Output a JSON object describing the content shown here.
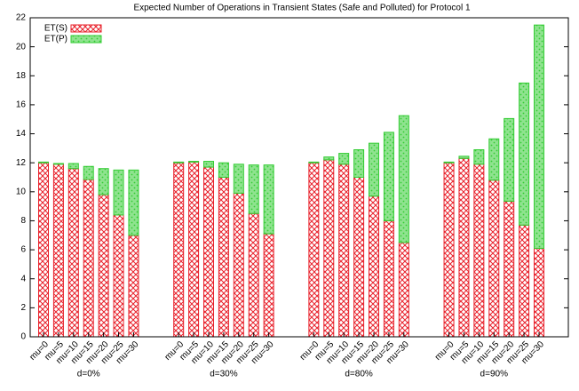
{
  "chart_data": {
    "type": "stacked-bar",
    "title": "Expected Number of Operations in Transient States (Safe and Polluted) for Protocol 1",
    "groups": [
      "d=0%",
      "d=30%",
      "d=80%",
      "d=90%"
    ],
    "categories": [
      "mu=0",
      "mu=5",
      "mu=10",
      "mu=15",
      "mu=20",
      "mu=25",
      "mu=30",
      "mu=0",
      "mu=5",
      "mu=10",
      "mu=15",
      "mu=20",
      "mu=25",
      "mu=30",
      "mu=0",
      "mu=5",
      "mu=10",
      "mu=15",
      "mu=20",
      "mu=25",
      "mu=30",
      "mu=0",
      "mu=5",
      "mu=10",
      "mu=15",
      "mu=20",
      "mu=25",
      "mu=30"
    ],
    "series": [
      {
        "name": "ET(S)",
        "color": "#e8202a",
        "values": [
          12.0,
          11.9,
          11.6,
          10.85,
          9.8,
          8.4,
          7.0,
          12.0,
          12.05,
          11.7,
          11.0,
          9.9,
          8.5,
          7.1,
          12.0,
          12.2,
          11.9,
          11.0,
          9.7,
          8.0,
          6.5,
          12.0,
          12.3,
          11.9,
          10.8,
          9.35,
          7.7,
          6.1
        ]
      },
      {
        "name": "ET(P)",
        "color": "#33cc33",
        "values": [
          0.05,
          0.05,
          0.35,
          0.9,
          1.8,
          3.1,
          4.5,
          0.05,
          0.05,
          0.4,
          1.0,
          2.0,
          3.35,
          4.75,
          0.05,
          0.2,
          0.75,
          1.9,
          3.65,
          6.1,
          8.75,
          0.05,
          0.15,
          1.0,
          2.85,
          5.7,
          9.8,
          15.4
        ]
      }
    ],
    "ylim": [
      0,
      22
    ],
    "yticks": [
      0,
      2,
      4,
      6,
      8,
      10,
      12,
      14,
      16,
      18,
      20,
      22
    ],
    "grid": false,
    "legend": "top-left"
  }
}
